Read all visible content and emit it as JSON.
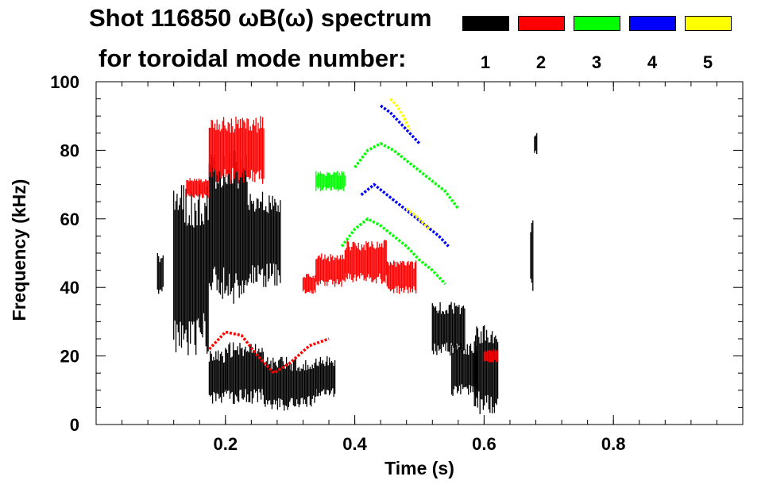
{
  "title": {
    "line1": "Shot 116850 ωB(ω) spectrum",
    "line2": "for toroidal mode number:"
  },
  "legend": [
    {
      "label": "1",
      "color": "#000000"
    },
    {
      "label": "2",
      "color": "#ff0000"
    },
    {
      "label": "3",
      "color": "#00ff00"
    },
    {
      "label": "4",
      "color": "#0000ff"
    },
    {
      "label": "5",
      "color": "#ffff00"
    }
  ],
  "chart_data": {
    "type": "heatmap",
    "title": "Shot 116850 ωB(ω) spectrum",
    "xlabel": "Time (s)",
    "ylabel": "Frequency (kHz)",
    "xlim": [
      0.0,
      1.0
    ],
    "ylim": [
      0,
      100
    ],
    "x_ticks": [
      0.2,
      0.4,
      0.6,
      0.8
    ],
    "x_tick_labels": [
      "0.2",
      "0.4",
      "0.6",
      "0.8"
    ],
    "y_ticks": [
      0,
      20,
      40,
      60,
      80,
      100
    ],
    "y_tick_labels": [
      "0",
      "20",
      "40",
      "60",
      "80",
      "100"
    ],
    "series": [
      {
        "name": "n=1",
        "color": "#000000",
        "regions": [
          {
            "t": [
              0.095,
              0.105
            ],
            "f": [
              38,
              50
            ]
          },
          {
            "t": [
              0.12,
              0.175
            ],
            "f": [
              20,
              70
            ]
          },
          {
            "t": [
              0.175,
              0.235
            ],
            "f": [
              35,
              80
            ]
          },
          {
            "t": [
              0.235,
              0.285
            ],
            "f": [
              40,
              68
            ]
          },
          {
            "t": [
              0.175,
              0.2
            ],
            "f": [
              6,
              22
            ]
          },
          {
            "t": [
              0.2,
              0.26
            ],
            "f": [
              6,
              24
            ]
          },
          {
            "t": [
              0.26,
              0.3
            ],
            "f": [
              4,
              20
            ]
          },
          {
            "t": [
              0.3,
              0.34
            ],
            "f": [
              5,
              19
            ]
          },
          {
            "t": [
              0.34,
              0.37
            ],
            "f": [
              8,
              20
            ]
          },
          {
            "t": [
              0.52,
              0.57
            ],
            "f": [
              20,
              36
            ]
          },
          {
            "t": [
              0.55,
              0.59
            ],
            "f": [
              8,
              24
            ]
          },
          {
            "t": [
              0.585,
              0.622
            ],
            "f": [
              3,
              30
            ]
          },
          {
            "t": [
              0.672,
              0.677
            ],
            "f": [
              38,
              60
            ]
          },
          {
            "t": [
              0.678,
              0.682
            ],
            "f": [
              78,
              86
            ]
          }
        ]
      },
      {
        "name": "n=2",
        "color": "#ff0000",
        "regions": [
          {
            "t": [
              0.175,
              0.26
            ],
            "f": [
              70,
              90
            ]
          },
          {
            "t": [
              0.14,
              0.175
            ],
            "f": [
              66,
              72
            ]
          },
          {
            "t": [
              0.32,
              0.34
            ],
            "f": [
              38,
              44
            ]
          },
          {
            "t": [
              0.34,
              0.385
            ],
            "f": [
              40,
              50
            ]
          },
          {
            "t": [
              0.385,
              0.45
            ],
            "f": [
              41,
              54
            ]
          },
          {
            "t": [
              0.45,
              0.495
            ],
            "f": [
              38,
              48
            ]
          },
          {
            "t": [
              0.6,
              0.622
            ],
            "f": [
              18,
              22
            ]
          }
        ],
        "curves": [
          {
            "t": [
              0.175,
              0.2,
              0.225,
              0.25,
              0.275,
              0.3,
              0.33,
              0.36
            ],
            "f": [
              22,
              27,
              26,
              20,
              15,
              18,
              23,
              25
            ]
          }
        ]
      },
      {
        "name": "n=3",
        "color": "#00ff00",
        "regions": [
          {
            "t": [
              0.34,
              0.385
            ],
            "f": [
              68,
              74
            ]
          }
        ],
        "curves": [
          {
            "t": [
              0.4,
              0.42,
              0.44,
              0.46,
              0.48,
              0.5,
              0.52,
              0.54,
              0.56
            ],
            "f": [
              75,
              80,
              82,
              80,
              77,
              74,
              71,
              68,
              63
            ]
          },
          {
            "t": [
              0.38,
              0.4,
              0.42,
              0.44,
              0.46,
              0.48,
              0.5,
              0.52,
              0.54
            ],
            "f": [
              52,
              57,
              60,
              58,
              55,
              52,
              48,
              45,
              41
            ]
          }
        ]
      },
      {
        "name": "n=4",
        "color": "#0000ff",
        "curves": [
          {
            "t": [
              0.44,
              0.455,
              0.47,
              0.485,
              0.5
            ],
            "f": [
              93,
              91,
              88,
              85,
              82
            ]
          },
          {
            "t": [
              0.41,
              0.43,
              0.45,
              0.47,
              0.49,
              0.51,
              0.53,
              0.545
            ],
            "f": [
              67,
              70,
              67,
              64,
              61,
              58,
              55,
              52
            ]
          }
        ]
      },
      {
        "name": "n=5",
        "color": "#ffff00",
        "curves": [
          {
            "t": [
              0.455,
              0.465,
              0.475,
              0.485
            ],
            "f": [
              95,
              93,
              90,
              86
            ]
          },
          {
            "t": [
              0.48,
              0.5,
              0.515
            ],
            "f": [
              63,
              60,
              57
            ]
          }
        ]
      }
    ]
  }
}
